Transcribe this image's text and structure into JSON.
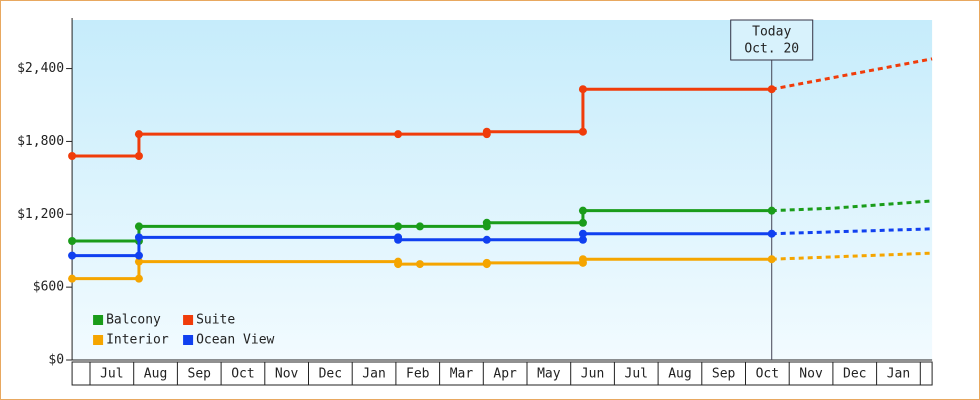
{
  "chart_data": {
    "type": "line",
    "categories": [
      "Jul",
      "Aug",
      "Sep",
      "Oct",
      "Nov",
      "Dec",
      "Jan",
      "Feb",
      "Mar",
      "Apr",
      "May",
      "Jun",
      "Jul",
      "Aug",
      "Sep",
      "Oct",
      "Nov",
      "Dec",
      "Jan"
    ],
    "xlim": [
      -0.41,
      19.27
    ],
    "ylim": [
      0,
      2800
    ],
    "yticks": [
      {
        "value": 0,
        "label": "$0"
      },
      {
        "value": 600,
        "label": "$600"
      },
      {
        "value": 1200,
        "label": "$1,200"
      },
      {
        "value": 1800,
        "label": "$1,800"
      },
      {
        "value": 2400,
        "label": "$2,400"
      }
    ],
    "series": [
      {
        "name": "Balcony",
        "color": "#1a9c1a",
        "x": [
          -0.41,
          1.12,
          1.12,
          7.05,
          7.55,
          9.08,
          9.08,
          11.28,
          11.28,
          15.6
        ],
        "values": [
          980,
          980,
          1100,
          1100,
          1100,
          1100,
          1130,
          1130,
          1230,
          1230
        ],
        "forecast": {
          "x": [
            15.6,
            17.0,
            19.27
          ],
          "values": [
            1230,
            1250,
            1310
          ]
        }
      },
      {
        "name": "Suite",
        "color": "#f03c0a",
        "x": [
          -0.41,
          1.12,
          1.12,
          7.05,
          9.08,
          9.08,
          11.28,
          11.28,
          15.6
        ],
        "values": [
          1680,
          1680,
          1860,
          1860,
          1860,
          1880,
          1880,
          2230,
          2230
        ],
        "forecast": {
          "x": [
            15.6,
            19.27
          ],
          "values": [
            2230,
            2480
          ]
        }
      },
      {
        "name": "Interior",
        "color": "#f5a500",
        "x": [
          -0.41,
          1.12,
          1.12,
          7.05,
          7.05,
          7.55,
          9.08,
          9.08,
          11.28,
          11.28,
          15.6
        ],
        "values": [
          670,
          670,
          810,
          810,
          790,
          790,
          790,
          800,
          800,
          830,
          830
        ],
        "forecast": {
          "x": [
            15.6,
            19.27
          ],
          "values": [
            830,
            880
          ]
        }
      },
      {
        "name": "Ocean View",
        "color": "#1040f0",
        "x": [
          -0.41,
          1.12,
          1.12,
          7.05,
          7.05,
          9.08,
          11.28,
          11.28,
          15.6
        ],
        "values": [
          860,
          860,
          1010,
          1010,
          990,
          990,
          990,
          1040,
          1040
        ],
        "forecast": {
          "x": [
            15.6,
            19.27
          ],
          "values": [
            1040,
            1080
          ]
        }
      }
    ],
    "today": {
      "x": 15.6,
      "label": [
        "Today",
        "Oct. 20"
      ]
    },
    "legend": "lower left"
  }
}
